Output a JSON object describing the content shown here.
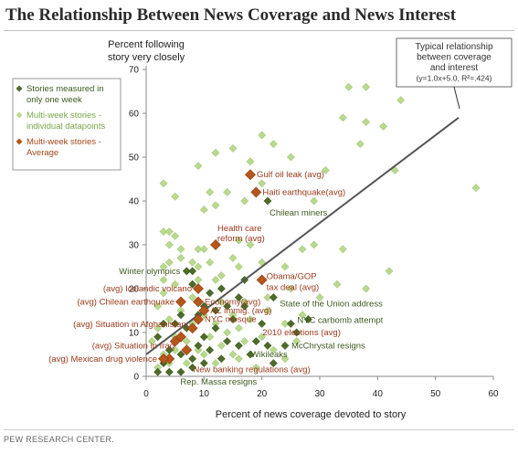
{
  "header": {
    "title": "The Relationship Between News Coverage and News Interest"
  },
  "footer": {
    "source": "PEW RESEARCH CENTER."
  },
  "colors": {
    "single_week": "#4f6b2a",
    "multi_week_individual": "#b9d98f",
    "multi_week_average": "#b5561b",
    "trend_line": "#555555",
    "label_dark_red": "#9a3a1a",
    "label_green": "#3e5a1e"
  },
  "annotation": {
    "lines": [
      "Typical relationship",
      "between coverage",
      "and interest",
      "(y=1.0x+5.0,  R²=.424)"
    ]
  },
  "chart_data": {
    "type": "scatter",
    "title": "The Relationship Between News Coverage and News Interest",
    "xlabel": "Percent of news coverage devoted to story",
    "ylabel_lines": [
      "Percent following",
      "story very closely"
    ],
    "xlim": [
      0,
      60
    ],
    "ylim": [
      0,
      70
    ],
    "xticks": [
      0,
      10,
      20,
      30,
      40,
      50,
      60
    ],
    "yticks": [
      0,
      10,
      20,
      30,
      40,
      50,
      60,
      70
    ],
    "grid": false,
    "legend_position": "top-left",
    "trend": {
      "slope": 1.0,
      "intercept": 5.0,
      "r2": 0.424,
      "x_range": [
        0,
        54
      ]
    },
    "series": [
      {
        "name": "Multi-week stories - individual datapoints",
        "marker": "light-diamond",
        "points": [
          [
            35,
            66
          ],
          [
            38,
            66
          ],
          [
            44,
            63
          ],
          [
            38,
            58
          ],
          [
            34,
            59
          ],
          [
            57,
            43
          ],
          [
            41,
            57
          ],
          [
            37,
            53
          ],
          [
            43,
            47
          ],
          [
            20,
            55
          ],
          [
            25,
            50
          ],
          [
            18,
            49
          ],
          [
            15,
            52
          ],
          [
            12,
            51
          ],
          [
            22,
            53
          ],
          [
            9,
            48
          ],
          [
            11,
            42
          ],
          [
            17,
            40
          ],
          [
            12,
            39
          ],
          [
            10,
            38
          ],
          [
            14,
            42
          ],
          [
            20,
            44
          ],
          [
            31,
            47
          ],
          [
            29,
            40
          ],
          [
            3,
            44
          ],
          [
            5,
            41
          ],
          [
            3,
            33
          ],
          [
            4,
            33
          ],
          [
            5,
            32
          ],
          [
            4,
            30
          ],
          [
            6,
            29
          ],
          [
            6,
            27
          ],
          [
            8,
            26
          ],
          [
            9,
            29
          ],
          [
            9,
            25
          ],
          [
            10,
            29
          ],
          [
            3,
            25
          ],
          [
            4,
            26
          ],
          [
            3,
            22
          ],
          [
            11,
            26
          ],
          [
            12,
            22
          ],
          [
            9,
            22
          ],
          [
            7,
            24
          ],
          [
            13,
            23
          ],
          [
            15,
            27
          ],
          [
            16,
            31
          ],
          [
            18,
            30
          ],
          [
            16,
            25
          ],
          [
            20,
            26
          ],
          [
            24,
            25
          ],
          [
            27,
            29
          ],
          [
            29,
            30
          ],
          [
            34,
            29
          ],
          [
            42,
            24
          ],
          [
            38,
            20
          ],
          [
            33,
            21
          ],
          [
            30,
            18
          ],
          [
            25,
            20
          ],
          [
            21,
            18
          ],
          [
            17,
            17
          ],
          [
            13,
            17
          ],
          [
            8,
            18
          ],
          [
            5,
            21
          ],
          [
            3,
            19
          ],
          [
            2,
            16
          ],
          [
            4,
            13
          ],
          [
            6,
            15
          ],
          [
            8,
            12
          ],
          [
            10,
            14
          ],
          [
            12,
            12
          ],
          [
            15,
            14
          ],
          [
            16,
            11
          ],
          [
            18,
            13
          ],
          [
            21,
            15
          ],
          [
            24,
            12
          ],
          [
            26,
            8
          ],
          [
            27,
            14
          ],
          [
            2,
            11
          ],
          [
            5,
            9
          ],
          [
            7,
            8
          ],
          [
            1,
            8
          ],
          [
            9,
            6
          ],
          [
            11,
            9
          ],
          [
            13,
            7
          ],
          [
            15,
            5
          ],
          [
            14,
            10
          ],
          [
            17,
            8
          ],
          [
            20,
            9
          ],
          [
            22,
            6
          ],
          [
            24,
            4
          ],
          [
            3,
            5
          ],
          [
            5,
            6
          ],
          [
            7,
            3
          ],
          [
            10,
            5
          ],
          [
            12,
            3
          ],
          [
            16,
            4
          ],
          [
            19,
            2
          ],
          [
            2,
            2
          ],
          [
            4,
            3
          ]
        ]
      },
      {
        "name": "Stories measured in only one week",
        "marker": "dark-diamond",
        "points": [
          [
            21,
            40
          ],
          [
            7,
            24
          ],
          [
            8,
            24
          ],
          [
            11,
            19
          ],
          [
            13,
            20
          ],
          [
            17,
            22
          ],
          [
            16,
            18
          ],
          [
            22,
            18
          ],
          [
            8,
            21
          ],
          [
            12,
            15
          ],
          [
            15,
            13
          ],
          [
            17,
            16
          ],
          [
            20,
            12
          ],
          [
            25,
            12
          ],
          [
            28,
            13
          ],
          [
            26,
            10
          ],
          [
            21,
            7
          ],
          [
            24,
            7
          ],
          [
            19,
            8
          ],
          [
            14,
            8
          ],
          [
            16,
            7
          ],
          [
            10,
            9
          ],
          [
            11,
            6
          ],
          [
            12,
            11
          ],
          [
            7,
            11
          ],
          [
            5,
            12
          ],
          [
            5,
            8
          ],
          [
            4,
            6
          ],
          [
            6,
            5
          ],
          [
            8,
            4
          ],
          [
            9,
            7
          ],
          [
            10,
            3
          ],
          [
            3,
            3
          ],
          [
            2,
            9
          ],
          [
            2,
            1
          ],
          [
            4,
            1
          ],
          [
            6,
            1
          ],
          [
            8,
            2
          ],
          [
            13,
            4
          ],
          [
            18,
            5
          ],
          [
            22,
            3
          ],
          [
            9,
            14
          ],
          [
            10,
            16
          ],
          [
            14,
            16
          ],
          [
            6,
            14
          ],
          [
            3,
            12
          ]
        ]
      },
      {
        "name": "Multi-week stories - Average",
        "marker": "orange-diamond",
        "points": [
          [
            18,
            46
          ],
          [
            19,
            42
          ],
          [
            12,
            30
          ],
          [
            20,
            22
          ],
          [
            9,
            20
          ],
          [
            6,
            17
          ],
          [
            9,
            17
          ],
          [
            10,
            15
          ],
          [
            9,
            13
          ],
          [
            8,
            11
          ],
          [
            6,
            9
          ],
          [
            5,
            8
          ],
          [
            7,
            6
          ],
          [
            4,
            4
          ],
          [
            3,
            4
          ]
        ]
      }
    ],
    "labeled_points": [
      {
        "text": "Gulf oil leak (avg)",
        "x": 18,
        "y": 46,
        "color_key": "label_dark_red",
        "side": "right"
      },
      {
        "text": "Haiti earthquake(avg)",
        "x": 19,
        "y": 42,
        "color_key": "label_dark_red",
        "side": "right"
      },
      {
        "text": "Chilean miners",
        "x": 21,
        "y": 40,
        "color_key": "label_green",
        "side": "below-right"
      },
      {
        "text": "Health care",
        "x": 12,
        "y": 30,
        "color_key": "label_dark_red",
        "side": "above-right-1"
      },
      {
        "text": "reform (avg)",
        "x": 12,
        "y": 30,
        "color_key": "label_dark_red",
        "side": "above-right-2"
      },
      {
        "text": "Winter olympics",
        "x": 7,
        "y": 24,
        "color_key": "label_green",
        "side": "left"
      },
      {
        "text": "(avg) Icelandic volcano",
        "x": 9,
        "y": 20,
        "color_key": "label_dark_red",
        "side": "left"
      },
      {
        "text": "Obama/GOP",
        "x": 20,
        "y": 22,
        "color_key": "label_dark_red",
        "side": "right-1"
      },
      {
        "text": "tax deal (avg)",
        "x": 20,
        "y": 22,
        "color_key": "label_dark_red",
        "side": "right-2"
      },
      {
        "text": "(avg) Chilean earthquake",
        "x": 6,
        "y": 17,
        "color_key": "label_dark_red",
        "side": "left"
      },
      {
        "text": "Economy(avg)",
        "x": 9,
        "y": 17,
        "color_key": "label_dark_red",
        "side": "right"
      },
      {
        "text": "State of the Union address",
        "x": 22,
        "y": 18,
        "color_key": "label_green",
        "side": "right-low"
      },
      {
        "text": "AZ immig. (avg)",
        "x": 10,
        "y": 15,
        "color_key": "label_dark_red",
        "side": "right"
      },
      {
        "text": "NYC carbomb attempt",
        "x": 25,
        "y": 12,
        "color_key": "label_green",
        "side": "right-high"
      },
      {
        "text": "(avg) Situation in Afghanistan",
        "x": 8,
        "y": 11,
        "color_key": "label_dark_red",
        "side": "left-high"
      },
      {
        "text": "NYC mosque",
        "x": 9,
        "y": 13,
        "color_key": "label_dark_red",
        "side": "right"
      },
      {
        "text": "2010 elections (avg)",
        "x": 19,
        "y": 10,
        "color_key": "label_dark_red",
        "side": "right"
      },
      {
        "text": "(avg) Situation in Iraq",
        "x": 6,
        "y": 7,
        "color_key": "label_dark_red",
        "side": "left"
      },
      {
        "text": "McChrystal resigns",
        "x": 24,
        "y": 7,
        "color_key": "label_green",
        "side": "right"
      },
      {
        "text": "Wikileaks",
        "x": 17,
        "y": 5,
        "color_key": "label_green",
        "side": "right"
      },
      {
        "text": "(avg) Mexican drug violence",
        "x": 3,
        "y": 4,
        "color_key": "label_dark_red",
        "side": "left"
      },
      {
        "text": "New banking regulations (avg)",
        "x": 7,
        "y": 3,
        "color_key": "label_dark_red",
        "side": "right-low"
      },
      {
        "text": "Rep. Massa resigns",
        "x": 4,
        "y": 1,
        "color_key": "label_green",
        "side": "below"
      }
    ]
  }
}
